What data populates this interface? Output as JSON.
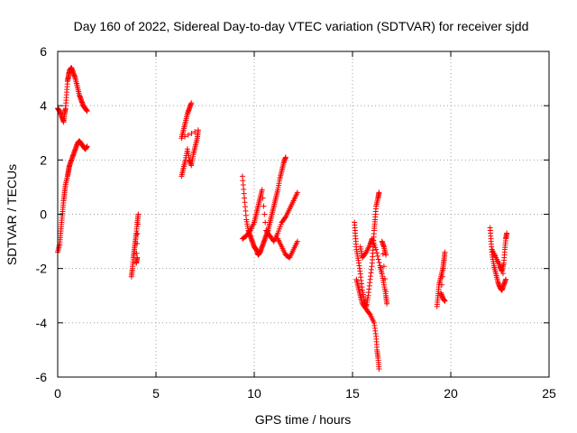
{
  "chart_data": {
    "type": "scatter",
    "title": "Day 160 of 2022, Sidereal Day-to-day VTEC variation (SDTVAR) for receiver sjdd",
    "xlabel": "GPS time / hours",
    "ylabel": "SDTVAR / TECUs",
    "xlim": [
      0,
      25
    ],
    "ylim": [
      -6,
      6
    ],
    "xticks": [
      0,
      5,
      10,
      15,
      20,
      25
    ],
    "yticks": [
      -6,
      -4,
      -2,
      0,
      2,
      4,
      6
    ],
    "grid": true,
    "legend": "none",
    "series": [
      {
        "name": "SDTVAR",
        "color": "#ff0000",
        "marker": "plus",
        "segments": [
          [
            [
              0.0,
              -1.4
            ],
            [
              0.1,
              -1.1
            ],
            [
              0.15,
              -0.7
            ],
            [
              0.2,
              -0.3
            ],
            [
              0.25,
              0.1
            ],
            [
              0.3,
              0.5
            ],
            [
              0.35,
              0.8
            ],
            [
              0.4,
              1.1
            ],
            [
              0.5,
              1.4
            ],
            [
              0.55,
              1.6
            ],
            [
              0.6,
              1.8
            ],
            [
              0.7,
              2.0
            ],
            [
              0.8,
              2.2
            ],
            [
              0.9,
              2.4
            ],
            [
              1.0,
              2.6
            ],
            [
              1.1,
              2.7
            ],
            [
              1.2,
              2.6
            ],
            [
              1.3,
              2.5
            ],
            [
              1.4,
              2.4
            ],
            [
              1.5,
              2.5
            ]
          ],
          [
            [
              0.0,
              3.9
            ],
            [
              0.1,
              3.8
            ],
            [
              0.2,
              3.6
            ],
            [
              0.3,
              3.4
            ],
            [
              0.35,
              3.7
            ],
            [
              0.4,
              3.9
            ],
            [
              0.45,
              4.4
            ],
            [
              0.5,
              4.9
            ],
            [
              0.55,
              5.1
            ],
            [
              0.6,
              5.3
            ],
            [
              0.7,
              5.4
            ],
            [
              0.8,
              5.2
            ],
            [
              0.9,
              5.0
            ],
            [
              1.0,
              4.7
            ],
            [
              1.1,
              4.4
            ],
            [
              1.2,
              4.2
            ],
            [
              1.3,
              4.0
            ],
            [
              1.4,
              3.9
            ],
            [
              1.5,
              3.8
            ]
          ],
          [
            [
              3.75,
              -2.3
            ],
            [
              3.8,
              -2.0
            ],
            [
              3.85,
              -1.6
            ],
            [
              3.9,
              -1.3
            ],
            [
              3.95,
              -1.0
            ],
            [
              4.0,
              -0.7
            ],
            [
              4.05,
              -0.3
            ],
            [
              4.1,
              0.0
            ],
            [
              4.0,
              -1.8
            ],
            [
              4.05,
              -1.6
            ]
          ],
          [
            [
              6.3,
              1.4
            ],
            [
              6.4,
              1.7
            ],
            [
              6.5,
              2.0
            ],
            [
              6.6,
              2.4
            ],
            [
              6.7,
              2.0
            ],
            [
              6.8,
              1.8
            ],
            [
              6.9,
              2.2
            ],
            [
              7.0,
              2.5
            ],
            [
              7.1,
              2.8
            ],
            [
              7.15,
              3.1
            ],
            [
              6.3,
              2.8
            ],
            [
              6.4,
              3.1
            ],
            [
              6.5,
              3.4
            ],
            [
              6.6,
              3.7
            ],
            [
              6.7,
              3.9
            ],
            [
              6.8,
              4.1
            ]
          ],
          [
            [
              9.4,
              1.4
            ],
            [
              9.5,
              0.6
            ],
            [
              9.6,
              -0.2
            ],
            [
              9.7,
              -0.6
            ],
            [
              9.8,
              -0.8
            ],
            [
              9.9,
              -1.0
            ],
            [
              10.0,
              -1.2
            ],
            [
              10.1,
              -1.3
            ],
            [
              10.2,
              -1.5
            ],
            [
              10.3,
              -1.4
            ],
            [
              10.4,
              -1.2
            ],
            [
              10.5,
              -1.0
            ],
            [
              10.6,
              -0.8
            ],
            [
              10.7,
              -0.6
            ],
            [
              10.8,
              -0.3
            ],
            [
              10.9,
              0.0
            ],
            [
              11.0,
              0.3
            ],
            [
              11.1,
              0.6
            ],
            [
              11.2,
              0.9
            ],
            [
              11.3,
              1.3
            ],
            [
              11.4,
              1.6
            ],
            [
              11.5,
              1.9
            ],
            [
              11.6,
              2.1
            ]
          ],
          [
            [
              9.4,
              -0.9
            ],
            [
              9.6,
              -0.8
            ],
            [
              9.8,
              -0.6
            ],
            [
              10.0,
              -0.3
            ],
            [
              10.1,
              0.0
            ],
            [
              10.2,
              0.3
            ],
            [
              10.3,
              0.6
            ],
            [
              10.4,
              0.9
            ],
            [
              10.6,
              -0.6
            ],
            [
              10.8,
              -0.8
            ],
            [
              11.0,
              -1.0
            ],
            [
              11.2,
              -0.7
            ],
            [
              11.4,
              -0.3
            ],
            [
              11.6,
              -0.1
            ],
            [
              11.8,
              0.2
            ],
            [
              12.0,
              0.5
            ],
            [
              12.2,
              0.8
            ]
          ],
          [
            [
              11.2,
              -0.9
            ],
            [
              11.4,
              -1.2
            ],
            [
              11.6,
              -1.5
            ],
            [
              11.8,
              -1.6
            ],
            [
              12.0,
              -1.3
            ],
            [
              12.2,
              -1.0
            ]
          ],
          [
            [
              15.1,
              -0.3
            ],
            [
              15.15,
              -0.8
            ],
            [
              15.2,
              -1.3
            ],
            [
              15.3,
              -1.7
            ],
            [
              15.4,
              -2.2
            ],
            [
              15.5,
              -2.8
            ],
            [
              15.6,
              -3.2
            ],
            [
              15.7,
              -3.4
            ],
            [
              15.8,
              -3.0
            ],
            [
              15.9,
              -2.4
            ],
            [
              16.0,
              -1.8
            ],
            [
              16.05,
              -1.2
            ],
            [
              16.1,
              -0.6
            ],
            [
              16.15,
              -0.2
            ],
            [
              16.2,
              0.3
            ],
            [
              16.3,
              0.6
            ],
            [
              16.35,
              0.8
            ]
          ],
          [
            [
              15.2,
              -2.4
            ],
            [
              15.3,
              -2.7
            ],
            [
              15.4,
              -3.0
            ],
            [
              15.5,
              -3.3
            ],
            [
              15.7,
              -3.5
            ],
            [
              15.9,
              -3.7
            ],
            [
              16.1,
              -4.0
            ],
            [
              16.2,
              -4.5
            ],
            [
              16.25,
              -5.0
            ],
            [
              16.3,
              -5.3
            ],
            [
              16.35,
              -5.7
            ]
          ],
          [
            [
              15.4,
              -1.2
            ],
            [
              15.5,
              -1.6
            ],
            [
              15.7,
              -1.4
            ],
            [
              15.9,
              -1.1
            ],
            [
              16.0,
              -0.9
            ],
            [
              16.2,
              -1.3
            ],
            [
              16.4,
              -1.9
            ],
            [
              16.5,
              -2.2
            ],
            [
              16.6,
              -2.6
            ],
            [
              16.7,
              -3.0
            ],
            [
              16.75,
              -3.3
            ],
            [
              16.5,
              -1.0
            ],
            [
              16.6,
              -1.2
            ],
            [
              16.7,
              -1.5
            ]
          ],
          [
            [
              19.3,
              -3.4
            ],
            [
              19.35,
              -3.0
            ],
            [
              19.4,
              -2.6
            ],
            [
              19.5,
              -2.3
            ],
            [
              19.6,
              -2.0
            ],
            [
              19.65,
              -1.7
            ],
            [
              19.7,
              -1.4
            ],
            [
              19.5,
              -2.9
            ],
            [
              19.6,
              -3.1
            ],
            [
              19.7,
              -3.2
            ]
          ],
          [
            [
              22.0,
              -0.5
            ],
            [
              22.05,
              -1.0
            ],
            [
              22.1,
              -1.5
            ],
            [
              22.2,
              -1.9
            ],
            [
              22.3,
              -2.2
            ],
            [
              22.4,
              -2.5
            ],
            [
              22.5,
              -2.7
            ],
            [
              22.6,
              -2.8
            ],
            [
              22.7,
              -2.6
            ],
            [
              22.8,
              -2.4
            ],
            [
              22.1,
              -1.3
            ],
            [
              22.3,
              -1.6
            ],
            [
              22.5,
              -1.9
            ],
            [
              22.6,
              -2.1
            ],
            [
              22.7,
              -1.8
            ],
            [
              22.75,
              -1.3
            ],
            [
              22.8,
              -0.9
            ],
            [
              22.85,
              -0.7
            ]
          ]
        ]
      }
    ]
  }
}
